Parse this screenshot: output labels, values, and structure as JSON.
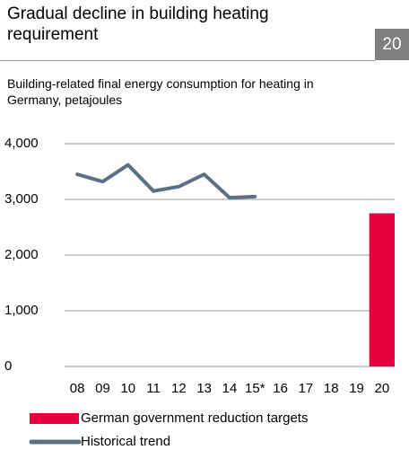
{
  "chart_data": {
    "type": "bar_line",
    "title": "Gradual decline in building heating requirement",
    "page_number": "20",
    "subtitle": "Building-related final energy consumption for heating in Germany, petajoules",
    "categories": [
      "08",
      "09",
      "10",
      "11",
      "12",
      "13",
      "14",
      "15*",
      "16",
      "17",
      "18",
      "19",
      "20"
    ],
    "series": [
      {
        "name": "German government reduction targets",
        "type": "bar",
        "color": "#e4003a",
        "values": [
          null,
          null,
          null,
          null,
          null,
          null,
          null,
          null,
          null,
          null,
          null,
          null,
          2750
        ]
      },
      {
        "name": "Historical trend",
        "type": "line",
        "color": "#5a7185",
        "values": [
          3450,
          3320,
          3620,
          3150,
          3230,
          3450,
          3030,
          3050,
          null,
          null,
          null,
          null,
          null
        ]
      }
    ],
    "ylim": [
      0,
      4000
    ],
    "yticks": [
      0,
      {
        "value": 1000,
        "label": "1,000"
      },
      {
        "value": 2000,
        "label": "2,000"
      },
      {
        "value": 3000,
        "label": "3,000"
      },
      {
        "value": 4000,
        "label": "4,000"
      }
    ],
    "grid": true,
    "legend": "bottom"
  }
}
